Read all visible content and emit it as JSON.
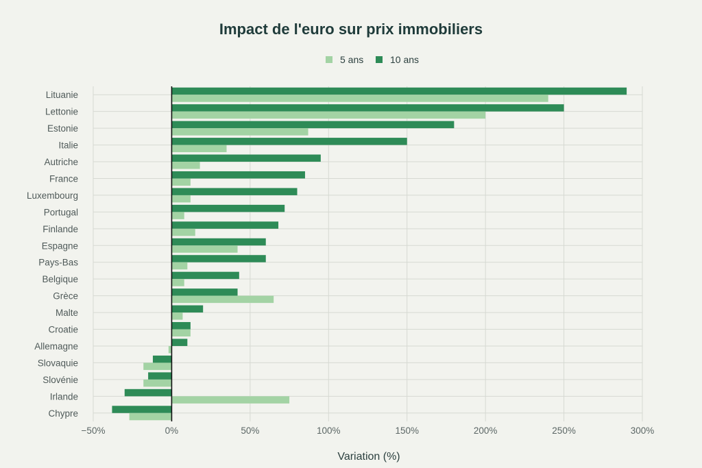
{
  "chart_data": {
    "type": "bar",
    "orientation": "horizontal",
    "title": "Impact de l'euro sur prix immobiliers",
    "xlabel": "Variation (%)",
    "xlim": [
      -50,
      300
    ],
    "xticks": [
      -50,
      0,
      50,
      100,
      150,
      200,
      250,
      300
    ],
    "xtick_labels": [
      "−50%",
      "0%",
      "50%",
      "100%",
      "150%",
      "200%",
      "250%",
      "300%"
    ],
    "grid": true,
    "legend": "top-center",
    "categories": [
      "Lituanie",
      "Lettonie",
      "Estonie",
      "Italie",
      "Autriche",
      "France",
      "Luxembourg",
      "Portugal",
      "Finlande",
      "Espagne",
      "Pays-Bas",
      "Belgique",
      "Grèce",
      "Malte",
      "Croatie",
      "Allemagne",
      "Slovaquie",
      "Slovénie",
      "Irlande",
      "Chypre"
    ],
    "series": [
      {
        "name": "5 ans",
        "color": "#a3d3a4",
        "values": [
          240,
          200,
          87,
          35,
          18,
          12,
          12,
          8,
          15,
          42,
          10,
          8,
          65,
          7,
          12,
          -2,
          -18,
          -18,
          75,
          -27
        ]
      },
      {
        "name": "10 ans",
        "color": "#2e8b57",
        "values": [
          290,
          250,
          180,
          150,
          95,
          85,
          80,
          72,
          68,
          60,
          60,
          43,
          42,
          20,
          12,
          10,
          -12,
          -15,
          -30,
          -38
        ]
      }
    ]
  }
}
